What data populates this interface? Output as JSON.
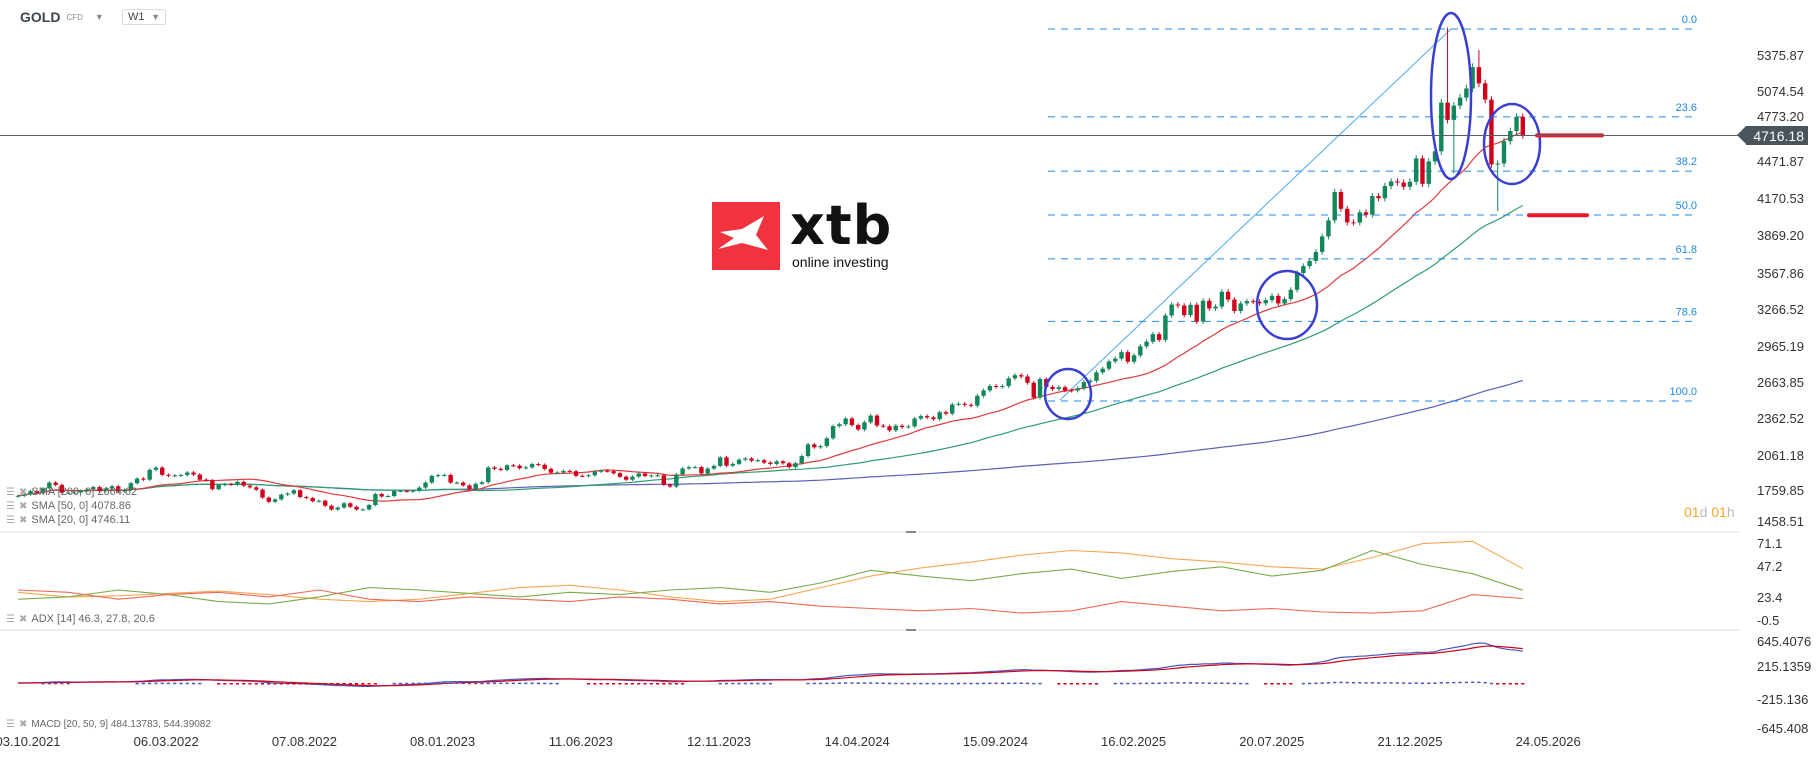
{
  "header": {
    "symbol": "GOLD",
    "instrument_type": "CFD",
    "timeframe": "W1"
  },
  "logo": {
    "brand": "xtb",
    "tagline": "online investing",
    "color": "#f0333f"
  },
  "current_price": "4716.18",
  "countdown": {
    "days": "01",
    "days_unit": "d",
    "hours": "01",
    "hours_unit": "h"
  },
  "legends": {
    "sma200": "SMA [200, 0] 2664.62",
    "sma50": "SMA [50, 0] 4078.86",
    "sma20": "SMA [20, 0] 4746.11",
    "adx": "ADX [14] 46.3, 27.8, 20.6",
    "macd": "MACD [20, 50, 9] 484.13783, 544.39082"
  },
  "colors": {
    "up": "#12875a",
    "down": "#d0021b",
    "sma20": "#e0393e",
    "sma50": "#2e9e6e",
    "sma200": "#5c5fb8",
    "fib": "#1e88e5",
    "annotation": "#3a3fcf",
    "adx": "#f7a650",
    "plus_di": "#7cab4a",
    "minus_di": "#ef6a55",
    "macd": "#4a56c0",
    "signal": "#d0021b"
  },
  "chart_data": [
    {
      "type": "candlestick",
      "title": "",
      "y_axis_ticks": [
        "5375.87",
        "5074.54",
        "4773.20",
        "4471.87",
        "4170.53",
        "3869.20",
        "3567.86",
        "3266.52",
        "2965.19",
        "2663.85",
        "2362.52",
        "2061.18",
        "1759.85",
        "1458.51"
      ],
      "ylim": [
        1458.51,
        5375.87
      ],
      "x_axis_ticks": [
        "03.10.2021",
        "06.03.2022",
        "07.08.2022",
        "08.01.2023",
        "11.06.2023",
        "12.11.2023",
        "14.04.2024",
        "15.09.2024",
        "16.02.2025",
        "20.07.2025",
        "21.12.2025",
        "24.05.2026"
      ],
      "interval": "weekly",
      "first_open": 1750,
      "closes": [
        1757,
        1768,
        1796,
        1783,
        1818,
        1865,
        1846,
        1783,
        1783,
        1784,
        1798,
        1811,
        1829,
        1797,
        1817,
        1835,
        1792,
        1807,
        1860,
        1898,
        1889,
        1970,
        1988,
        1929,
        1921,
        1924,
        1927,
        1948,
        1931,
        1889,
        1883,
        1811,
        1845,
        1853,
        1850,
        1871,
        1840,
        1826,
        1807,
        1742,
        1707,
        1727,
        1766,
        1775,
        1802,
        1747,
        1738,
        1712,
        1716,
        1675,
        1644,
        1660,
        1695,
        1666,
        1644,
        1645,
        1681,
        1771,
        1751,
        1755,
        1797,
        1797,
        1793,
        1798,
        1824,
        1865,
        1920,
        1926,
        1928,
        1865,
        1865,
        1842,
        1811,
        1855,
        1868,
        1989,
        1978,
        1969,
        2007,
        2004,
        1983,
        1990,
        2017,
        2011,
        1977,
        1946,
        1948,
        1961,
        1958,
        1921,
        1919,
        1925,
        1955,
        1962,
        1959,
        1942,
        1913,
        1889,
        1914,
        1940,
        1919,
        1923,
        1925,
        1848,
        1833,
        1932,
        1981,
        1992,
        1992,
        1940,
        1980,
        2002,
        2072,
        2004,
        2019,
        2053,
        2063,
        2045,
        2049,
        2029,
        2018,
        2039,
        2024,
        1992,
        2024,
        2083,
        2179,
        2155,
        2165,
        2229,
        2329,
        2344,
        2391,
        2337,
        2301,
        2360,
        2415,
        2333,
        2327,
        2294,
        2332,
        2321,
        2326,
        2391,
        2411,
        2400,
        2386,
        2443,
        2431,
        2507,
        2512,
        2503,
        2497,
        2578,
        2622,
        2658,
        2653,
        2657,
        2721,
        2747,
        2736,
        2685,
        2563,
        2715,
        2650,
        2634,
        2648,
        2622,
        2621,
        2639,
        2690,
        2701,
        2770,
        2800,
        2860,
        2883,
        2936,
        2858,
        2910,
        2984,
        3022,
        3084,
        3037,
        3237,
        3327,
        3319,
        3240,
        3325,
        3187,
        3358,
        3295,
        3310,
        3432,
        3368,
        3274,
        3336,
        3355,
        3350,
        3337,
        3363,
        3398,
        3336,
        3372,
        3448,
        3586,
        3643,
        3685,
        3759,
        3886,
        4018,
        4251,
        4113,
        4002,
        4000,
        4084,
        4065,
        4218,
        4200,
        4300,
        4338,
        4329,
        4294,
        4335,
        4527,
        4318,
        4502,
        4585,
        4985,
        4843,
        4960,
        5026,
        5101,
        5276,
        5143,
        5010,
        4477,
        4485,
        4668,
        4751,
        4868,
        4716.18
      ],
      "notable_wicks": [
        {
          "index": 228,
          "high": 5601
        },
        {
          "index": 229,
          "low": 4402
        },
        {
          "index": 233,
          "high": 5417
        },
        {
          "index": 236,
          "low": 4094
        }
      ],
      "moving_averages": [
        {
          "name": "SMA [200, 0]",
          "period": 200
        },
        {
          "name": "SMA [50, 0]",
          "period": 50
        },
        {
          "name": "SMA [20, 0]",
          "period": 20
        }
      ],
      "fibonacci": {
        "high": 5589,
        "low": 2535,
        "levels": [
          "0.0",
          "23.6",
          "38.2",
          "50.0",
          "61.8",
          "78.6",
          "100.0"
        ]
      },
      "support_marks": [
        4716,
        4060
      ]
    },
    {
      "type": "line",
      "title": "",
      "y_axis_ticks": [
        "71.1",
        "47.2",
        "23.4",
        "-0.5"
      ],
      "ylim": [
        -0.5,
        71.1
      ],
      "sample_every_weeks": 8,
      "series": [
        {
          "name": "ADX",
          "values": [
            26,
            22,
            23,
            25,
            27,
            24,
            20,
            18,
            20,
            25,
            30,
            32,
            28,
            22,
            18,
            20,
            30,
            40,
            47,
            52,
            58,
            62,
            60,
            55,
            52,
            48,
            46,
            56,
            68,
            70,
            46.3
          ]
        },
        {
          "name": "+DI",
          "values": [
            20,
            22,
            28,
            24,
            18,
            16,
            22,
            30,
            28,
            25,
            22,
            26,
            24,
            28,
            30,
            26,
            34,
            45,
            40,
            36,
            42,
            46,
            38,
            44,
            48,
            40,
            45,
            62,
            50,
            42,
            27.8
          ]
        },
        {
          "name": "-DI",
          "values": [
            28,
            26,
            20,
            24,
            26,
            22,
            28,
            20,
            18,
            22,
            20,
            18,
            22,
            20,
            16,
            18,
            14,
            12,
            10,
            12,
            8,
            10,
            18,
            14,
            10,
            12,
            9,
            8,
            10,
            24,
            20.6
          ]
        }
      ]
    },
    {
      "type": "macd",
      "title": "",
      "y_axis_ticks": [
        "645.4076",
        "215.1359",
        "-215.136",
        "-645.408"
      ],
      "ylim": [
        -645.408,
        645.4076
      ],
      "params": [
        20,
        50,
        9
      ]
    }
  ]
}
